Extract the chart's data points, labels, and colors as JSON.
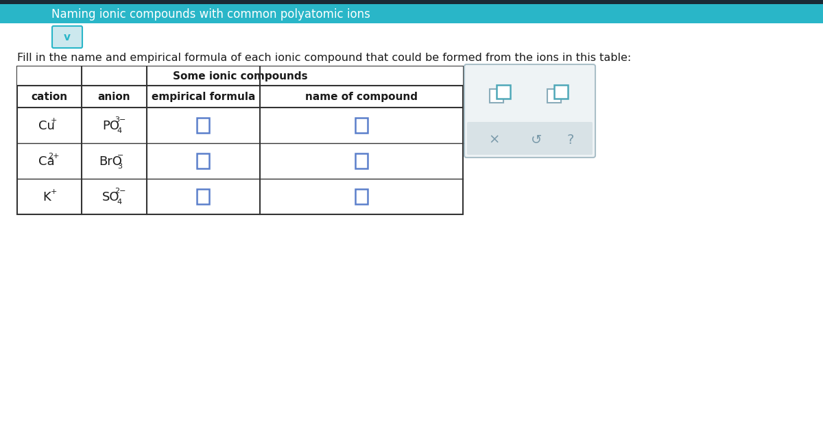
{
  "title_bar_color": "#29b6c8",
  "title_text": "Naming ionic compounds with common polyatomic ions",
  "title_text_color": "#ffffff",
  "title_font_size": 12,
  "bg_color": "#f5f5f5",
  "instruction_text": "Fill in the name and empirical formula of each ionic compound that could be formed from the ions in this table:",
  "instruction_font_size": 11.5,
  "table_title": "Some ionic compounds",
  "table_title_font_size": 11,
  "headers": [
    "cation",
    "anion",
    "empirical formula",
    "name of compound"
  ],
  "header_font_size": 11,
  "rows": [
    {
      "cation": "Cu",
      "cation_sup": "+",
      "anion_base": "PO",
      "anion_sub": "4",
      "anion_sup": "3−"
    },
    {
      "cation": "Ca",
      "cation_sup": "2+",
      "anion_base": "BrO",
      "anion_sub": "3",
      "anion_sup": "−"
    },
    {
      "cation": "K",
      "cation_sup": "+",
      "anion_base": "SO",
      "anion_sub": "4",
      "anion_sup": "2−"
    }
  ],
  "cell_font_size": 13,
  "input_box_color": "#5b7fcb",
  "input_box_fill": "#ffffff",
  "table_border_color": "#333333",
  "panel_border_color": "#aabfc8",
  "panel_bg_color": "#eef3f5",
  "button_bar_color": "#d8e2e6",
  "chevron_color": "#29b6c8",
  "chevron_bg": "#cce8ee",
  "icon_color": "#4fa8b8",
  "icon_gray": "#8aacba",
  "dark_bar_color": "#1a2a35",
  "text_color": "#1a1a1a"
}
